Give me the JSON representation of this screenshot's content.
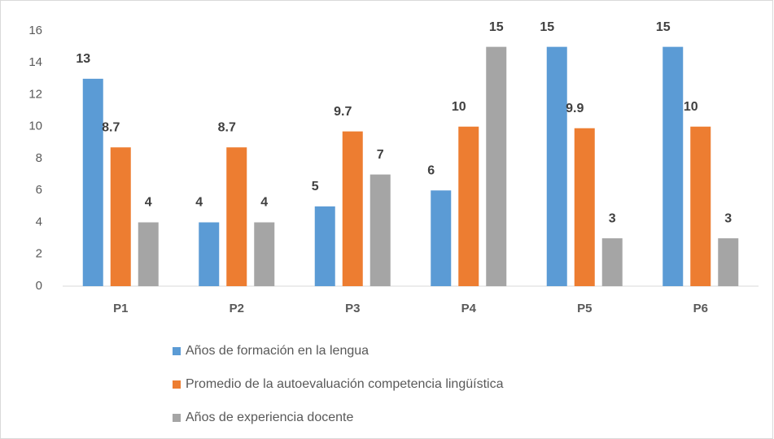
{
  "chart_data": {
    "type": "bar",
    "categories": [
      "P1",
      "P2",
      "P3",
      "P4",
      "P5",
      "P6"
    ],
    "series": [
      {
        "name": "Años de formación en la lengua",
        "color": "#5b9bd5",
        "values": [
          13,
          4,
          5,
          6,
          15,
          15
        ]
      },
      {
        "name": "Promedio de la autoevaluación competencia lingüística",
        "color": "#ed7d31",
        "values": [
          8.7,
          8.7,
          9.7,
          10,
          9.9,
          10
        ]
      },
      {
        "name": "Años de experiencia docente",
        "color": "#a5a5a5",
        "values": [
          4,
          4,
          7,
          15,
          3,
          3
        ]
      }
    ],
    "ylim": [
      0,
      16
    ],
    "yticks": [
      0,
      2,
      4,
      6,
      8,
      10,
      12,
      14,
      16
    ],
    "grid": false,
    "legend": "bottom"
  }
}
